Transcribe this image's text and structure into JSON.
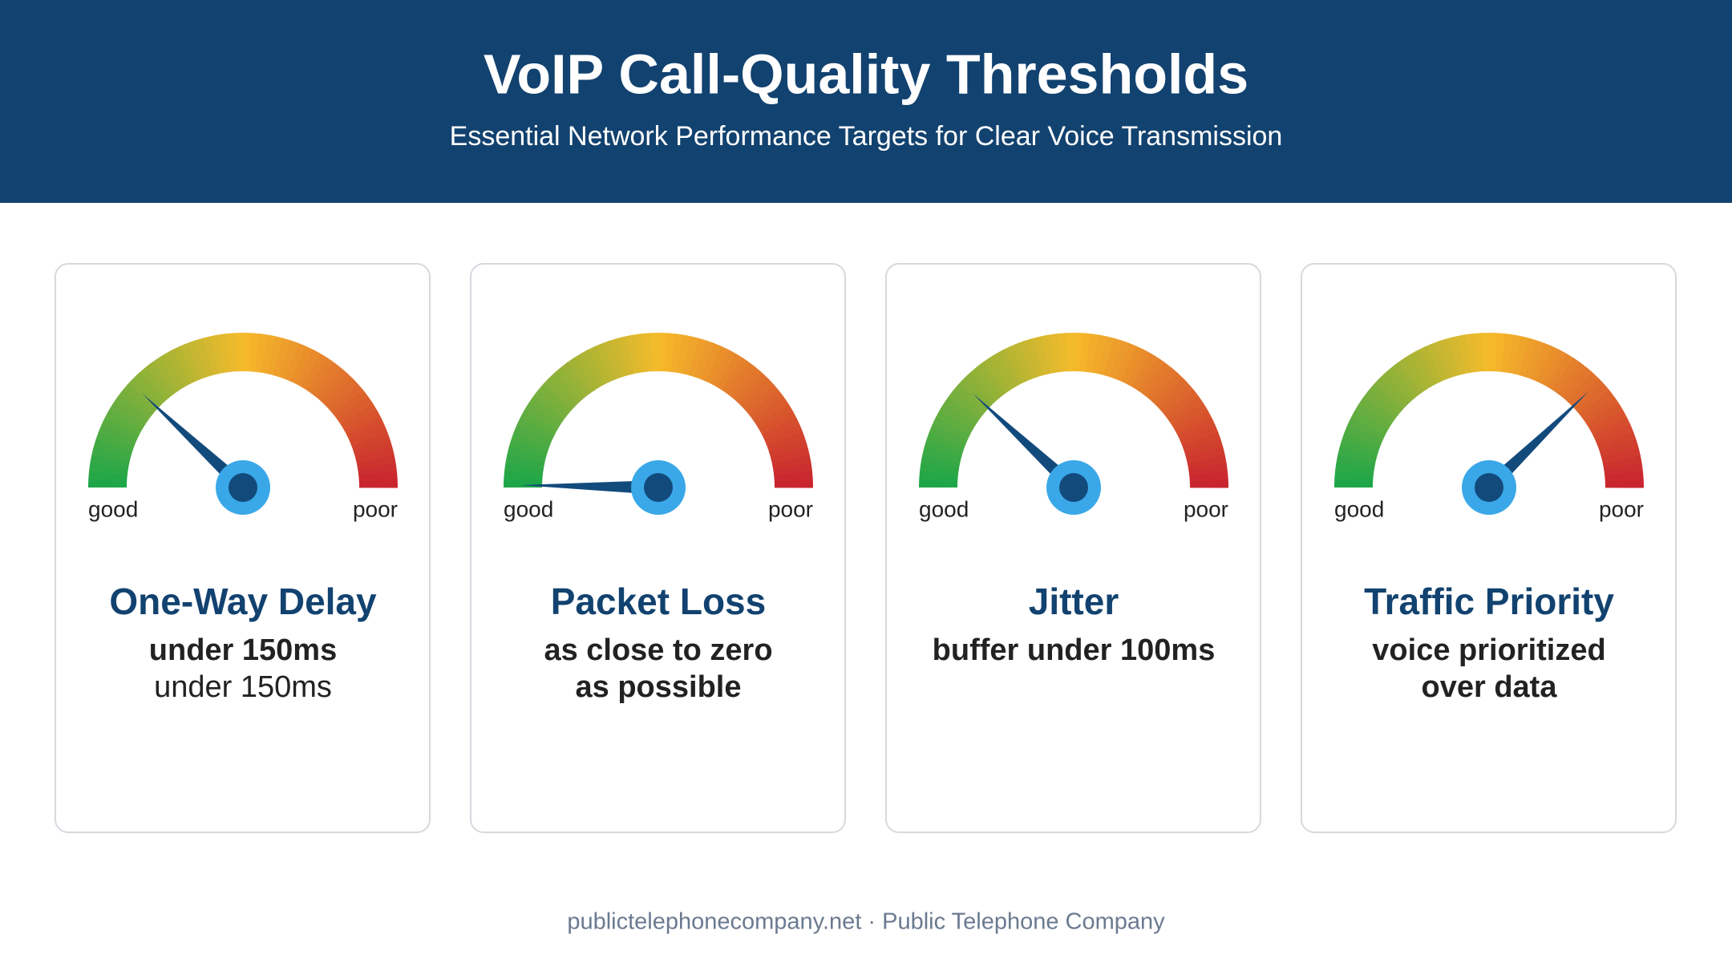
{
  "header": {
    "title": "VoIP Call-Quality Thresholds",
    "subtitle": "Essential Network Performance Targets for Clear Voice Transmission"
  },
  "cards": [
    {
      "good": "good",
      "poor": "poor",
      "title": "One-Way Delay",
      "lines": [
        "under 150ms",
        "under 150ms"
      ]
    },
    {
      "good": "good",
      "poor": "poor",
      "title": "Packet Loss",
      "lines": [
        "as close to zero",
        "as possible"
      ]
    },
    {
      "good": "good",
      "poor": "poor",
      "title": "Jitter",
      "lines": [
        "buffer under 100ms"
      ]
    },
    {
      "good": "good",
      "poor": "poor",
      "title": "Traffic Priority",
      "lines": [
        "voice prioritized",
        "over data"
      ]
    }
  ],
  "footer": "publictelephonecompany.net · Public Telephone Company"
}
